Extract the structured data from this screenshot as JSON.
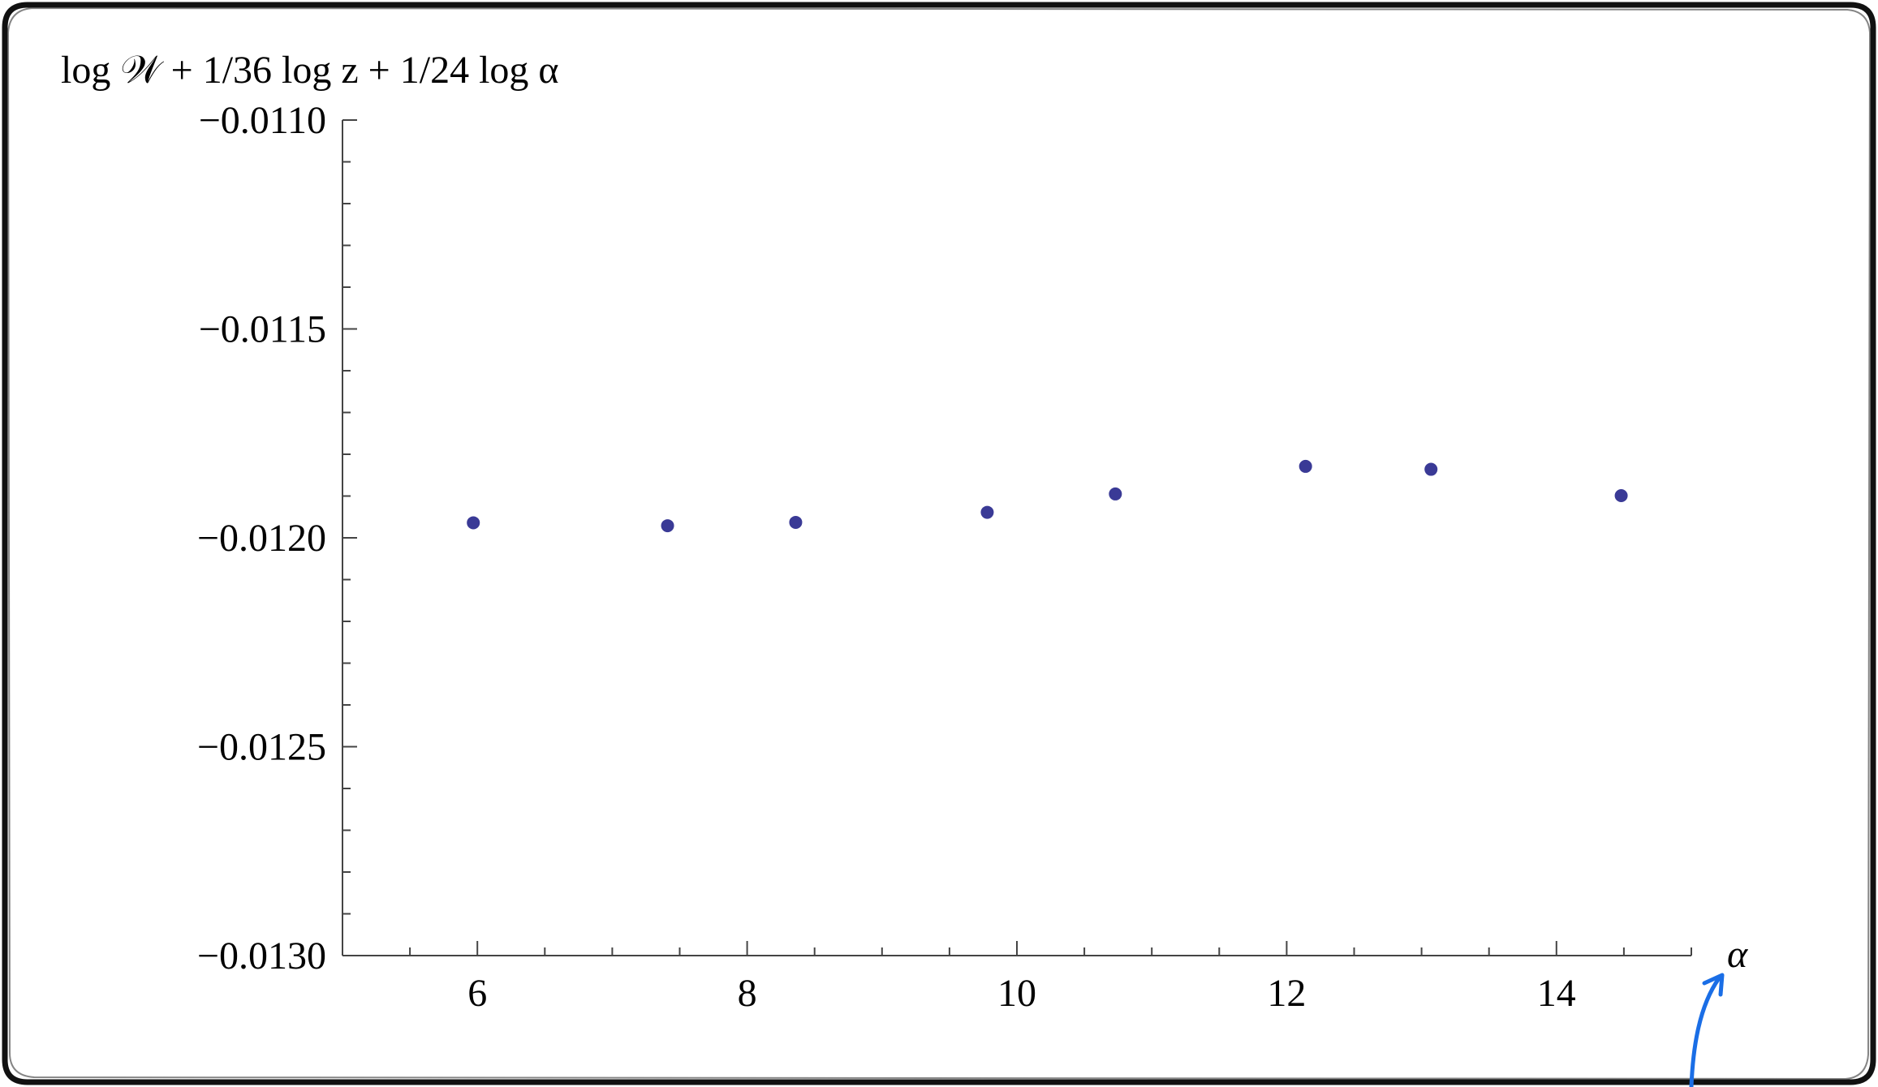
{
  "chart_data": {
    "type": "scatter",
    "ylabel": "log 𝒲 + 1/36 log z + 1/24 log α",
    "xlabel": "α",
    "xlim": [
      5,
      15
    ],
    "ylim": [
      -0.013,
      -0.011
    ],
    "x_ticks": [
      6,
      8,
      10,
      12,
      14
    ],
    "x_tick_labels": [
      "6",
      "8",
      "10",
      "12",
      "14"
    ],
    "y_ticks": [
      -0.011,
      -0.0115,
      -0.012,
      -0.0125,
      -0.013
    ],
    "y_tick_labels": [
      "−0.0110",
      "−0.0115",
      "−0.0120",
      "−0.0125",
      "−0.0130"
    ],
    "grid": false,
    "legend": "none",
    "series": [
      {
        "color": "#3a3a96",
        "points": [
          {
            "x": 5.97,
            "y": -0.011964
          },
          {
            "x": 7.41,
            "y": -0.011971
          },
          {
            "x": 8.36,
            "y": -0.011963
          },
          {
            "x": 9.78,
            "y": -0.011939
          },
          {
            "x": 10.73,
            "y": -0.011895
          },
          {
            "x": 12.14,
            "y": -0.011829
          },
          {
            "x": 13.07,
            "y": -0.011836
          },
          {
            "x": 14.48,
            "y": -0.011899
          }
        ]
      }
    ]
  },
  "annotation": {
    "arrow_color": "#1a6ee6"
  }
}
